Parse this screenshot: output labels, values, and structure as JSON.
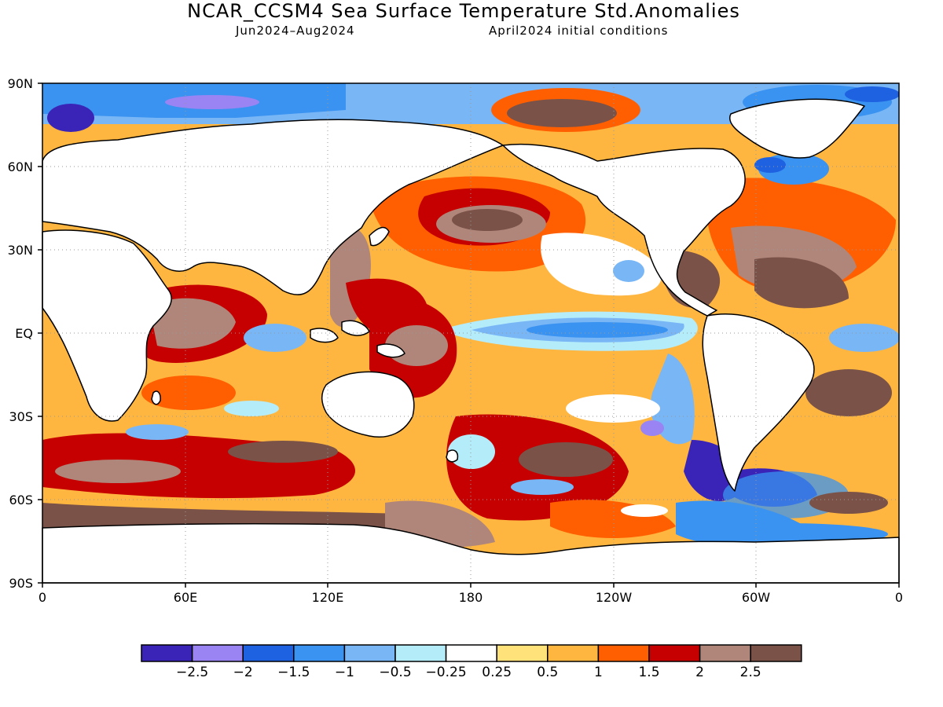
{
  "title": "NCAR_CCSM4 Sea Surface Temperature Std.Anomalies",
  "subtitle_period": "Jun2024–Aug2024",
  "subtitle_init": "April2024 initial conditions",
  "axes": {
    "lat_labels": [
      "90N",
      "60N",
      "30N",
      "EQ",
      "30S",
      "60S",
      "90S"
    ],
    "lon_labels": [
      "0",
      "60E",
      "120E",
      "180",
      "120W",
      "60W",
      "0"
    ]
  },
  "legend": {
    "colors": [
      "#3a24b8",
      "#9a84f4",
      "#1e62e2",
      "#3a93f0",
      "#79b6f6",
      "#b4ecfa",
      "#ffffff",
      "#ffe27a",
      "#ffb640",
      "#ff5f00",
      "#c60000",
      "#b0867a",
      "#7a5248"
    ],
    "labels": [
      "−2.5",
      "−2",
      "−1.5",
      "−1",
      "−0.5",
      "−0.25",
      "0.25",
      "0.5",
      "1",
      "1.5",
      "2",
      "2.5"
    ]
  },
  "colors": {
    "land": "#ffffff",
    "coast": "#000000",
    "grid": "#999999"
  }
}
